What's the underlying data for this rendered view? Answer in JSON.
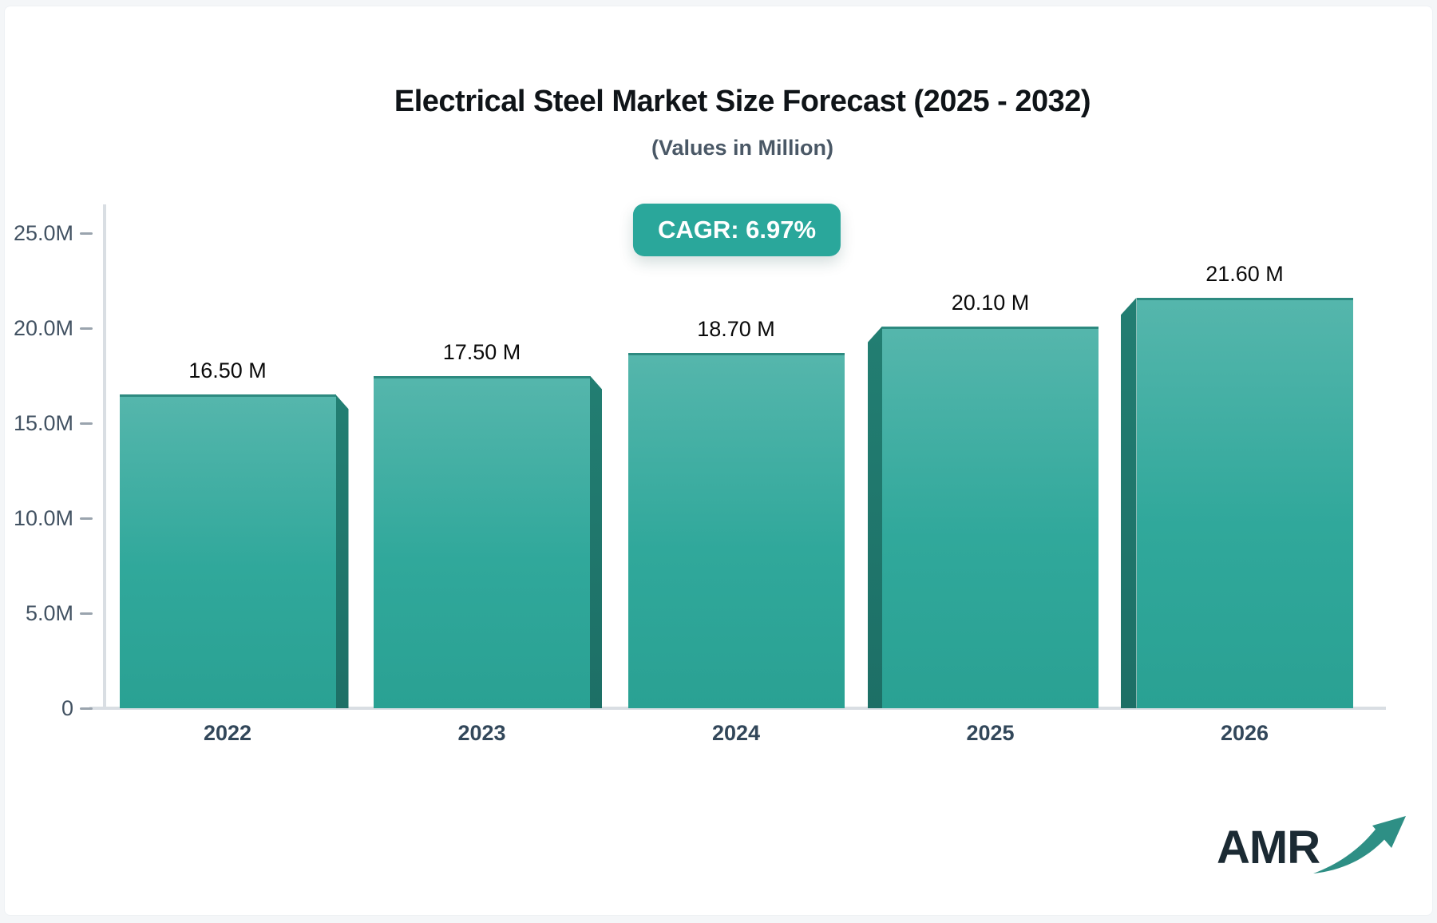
{
  "title": "Electrical Steel Market Size Forecast (2025 - 2032)",
  "subtitle": "(Values in Million)",
  "cagr_badge": "CAGR: 6.97%",
  "logo": {
    "text": "AMR",
    "icon": "trend-up-arrow-icon"
  },
  "colors": {
    "accent_teal": "#2aa79b",
    "bar_face_top": "#55b6ac",
    "bar_face_bottom": "#2aa193",
    "bar_side_dark": "#1f7a6f",
    "bar_top_edge": "#2d8a80",
    "axis_line": "#d9dee3",
    "tick_dash": "#9aa4ae",
    "tick_label": "#425262",
    "x_label": "#32475a",
    "title_text": "#0f1418",
    "subtitle_text": "#4a5866",
    "badge_text": "#ffffff",
    "logo_text": "#1b2a33",
    "logo_arrow": "#2e8f85"
  },
  "chart_data": {
    "type": "bar",
    "title": "Electrical Steel Market Size Forecast (2025 - 2032)",
    "subtitle": "(Values in Million)",
    "annotation": "CAGR: 6.97%",
    "categories": [
      "2022",
      "2023",
      "2024",
      "2025",
      "2026"
    ],
    "values": [
      16.5,
      17.5,
      18.7,
      20.1,
      21.6
    ],
    "bar_labels": [
      "16.50 M",
      "17.50 M",
      "18.70 M",
      "20.10 M",
      "21.60 M"
    ],
    "unit": "Million",
    "xlabel": "",
    "ylabel": "",
    "ylim": [
      0,
      25
    ],
    "yticks": [
      {
        "value": 25,
        "label": "25.0M"
      },
      {
        "value": 20,
        "label": "20.0M"
      },
      {
        "value": 15,
        "label": "15.0M"
      },
      {
        "value": 10,
        "label": "10.0M"
      },
      {
        "value": 5,
        "label": "5.0M"
      },
      {
        "value": 0,
        "label": "0"
      }
    ],
    "grid": false,
    "legend": false,
    "bar_3d_side": [
      "right",
      "right",
      "none",
      "left",
      "left"
    ]
  }
}
